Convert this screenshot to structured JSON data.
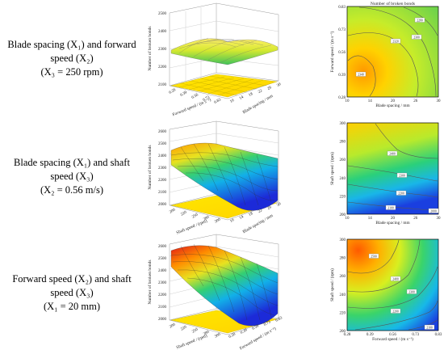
{
  "rows": [
    {
      "label_lines": [
        "Blade spacing (X₁) and forward",
        "speed (X₂)",
        "(X₃ = 250 rpm)"
      ]
    },
    {
      "label_lines": [
        "Blade spacing (X₁) and shaft",
        "speed (X₃)",
        "(X₂ = 0.56 m/s)"
      ]
    },
    {
      "label_lines": [
        "Forward speed (X₂) and shaft",
        "speed (X₃)",
        "(X₁ = 20 mm)"
      ]
    }
  ],
  "chart_data": [
    {
      "type": "surface",
      "zlabel": "Number of broken bonds",
      "xlabel": "Blade spacing / mm",
      "ylabel": "Forward speed / (m s⁻¹)",
      "x_ticks": [
        "10",
        "14",
        "18",
        "22",
        "26",
        "30"
      ],
      "y_ticks": [
        "0.28",
        "0.39",
        "0.56",
        "0.73",
        "0.83"
      ],
      "z_ticks": [
        "2100",
        "2200",
        "2300",
        "2400",
        "2500"
      ],
      "zlim": [
        2100,
        2500
      ],
      "surface_range": [
        2280,
        2340
      ]
    },
    {
      "type": "contour",
      "title": "Number of broken bonds",
      "xlabel": "Blade spacing / mm",
      "ylabel": "Forward speed / (m s⁻¹)",
      "x_ticks": [
        "10",
        "14",
        "20",
        "26",
        "30"
      ],
      "y_ticks": [
        "0.28",
        "0.39",
        "0.56",
        "0.73",
        "0.83"
      ],
      "contour_labels": [
        "2340",
        "2320",
        "2300",
        "2280"
      ]
    },
    {
      "type": "surface",
      "zlabel": "Number of broken bonds",
      "xlabel": "Blade spacing / mm",
      "ylabel": "Shaft speed / (rpm)",
      "x_ticks": [
        "10",
        "14",
        "18",
        "22",
        "26",
        "30"
      ],
      "y_ticks": [
        "200",
        "220",
        "250",
        "280",
        "300"
      ],
      "z_ticks": [
        "2000",
        "2100",
        "2200",
        "2300",
        "2400",
        "2500",
        "2600"
      ],
      "zlim": [
        2000,
        2600
      ],
      "surface_range": [
        2000,
        2420
      ]
    },
    {
      "type": "contour",
      "title": "",
      "xlabel": "Blade spacing / mm",
      "ylabel": "Shaft speed / (rpm)",
      "x_ticks": [
        "10",
        "14",
        "20",
        "26",
        "30"
      ],
      "y_ticks": [
        "200",
        "220",
        "240",
        "260",
        "280",
        "300"
      ],
      "contour_labels": [
        "2400",
        "2300",
        "2200",
        "2100",
        "2000"
      ]
    },
    {
      "type": "surface",
      "zlabel": "Number of broken bonds",
      "xlabel": "Forward speed / (m s⁻¹)",
      "ylabel": "Shaft speed / (rpm)",
      "x_ticks": [
        "0.28",
        "0.39",
        "0.56",
        "0.73",
        "0.83"
      ],
      "y_ticks": [
        "200",
        "220",
        "250",
        "280",
        "300"
      ],
      "z_ticks": [
        "2000",
        "2100",
        "2200",
        "2300",
        "2400",
        "2500",
        "2600"
      ],
      "zlim": [
        2000,
        2600
      ],
      "surface_range": [
        2000,
        2560
      ]
    },
    {
      "type": "contour",
      "title": "",
      "xlabel": "Forward speed / (m s⁻¹)",
      "ylabel": "Shaft speed / (rpm)",
      "x_ticks": [
        "0.28",
        "0.39",
        "0.56",
        "0.73",
        "0.83"
      ],
      "y_ticks": [
        "200",
        "220",
        "240",
        "260",
        "280",
        "300"
      ],
      "contour_labels": [
        "2500",
        "2400",
        "2300",
        "2200",
        "2100"
      ]
    }
  ]
}
